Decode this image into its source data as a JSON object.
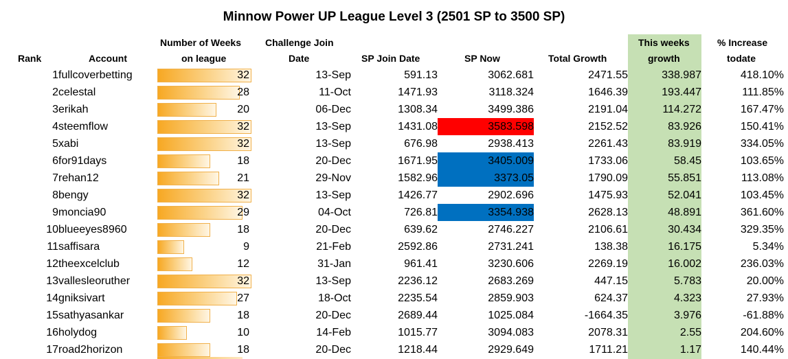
{
  "title": "Minnow Power UP League Level 3 (2501 SP to 3500 SP)",
  "headers": {
    "rank": "Rank",
    "account": "Account",
    "weeks_line1": "Number of Weeks",
    "weeks_line2": "on league",
    "join_line1": "Challenge Join",
    "join_line2": "Date",
    "sp_join": "SP Join Date",
    "sp_now": "SP Now",
    "total_growth": "Total Growth",
    "week_growth_line1": "This weeks",
    "week_growth_line2": "growth",
    "increase_line1": "% Increase",
    "increase_line2": "todate"
  },
  "colors": {
    "week_growth_column": "#c6e0b4",
    "highlight_red": "#ff0000",
    "highlight_blue": "#0070c0",
    "weeks_bar": "#f7a823"
  },
  "weeks_max": 32,
  "rows": [
    {
      "rank": "1",
      "account": "fullcoverbetting",
      "weeks": 32,
      "join_date": "13-Sep",
      "sp_join": "591.13",
      "sp_now": "3062.681",
      "total_growth": "2471.55",
      "week_growth": "338.987",
      "increase": "418.10%",
      "sp_now_highlight": ""
    },
    {
      "rank": "2",
      "account": "celestal",
      "weeks": 28,
      "join_date": "11-Oct",
      "sp_join": "1471.93",
      "sp_now": "3118.324",
      "total_growth": "1646.39",
      "week_growth": "193.447",
      "increase": "111.85%",
      "sp_now_highlight": ""
    },
    {
      "rank": "3",
      "account": "erikah",
      "weeks": 20,
      "join_date": "06-Dec",
      "sp_join": "1308.34",
      "sp_now": "3499.386",
      "total_growth": "2191.04",
      "week_growth": "114.272",
      "increase": "167.47%",
      "sp_now_highlight": ""
    },
    {
      "rank": "4",
      "account": "steemflow",
      "weeks": 32,
      "join_date": "13-Sep",
      "sp_join": "1431.08",
      "sp_now": "3583.598",
      "total_growth": "2152.52",
      "week_growth": "83.926",
      "increase": "150.41%",
      "sp_now_highlight": "red"
    },
    {
      "rank": "5",
      "account": "xabi",
      "weeks": 32,
      "join_date": "13-Sep",
      "sp_join": "676.98",
      "sp_now": "2938.413",
      "total_growth": "2261.43",
      "week_growth": "83.919",
      "increase": "334.05%",
      "sp_now_highlight": ""
    },
    {
      "rank": "6",
      "account": "for91days",
      "weeks": 18,
      "join_date": "20-Dec",
      "sp_join": "1671.95",
      "sp_now": "3405.009",
      "total_growth": "1733.06",
      "week_growth": "58.45",
      "increase": "103.65%",
      "sp_now_highlight": "blue"
    },
    {
      "rank": "7",
      "account": "rehan12",
      "weeks": 21,
      "join_date": "29-Nov",
      "sp_join": "1582.96",
      "sp_now": "3373.05",
      "total_growth": "1790.09",
      "week_growth": "55.851",
      "increase": "113.08%",
      "sp_now_highlight": "blue"
    },
    {
      "rank": "8",
      "account": "bengy",
      "weeks": 32,
      "join_date": "13-Sep",
      "sp_join": "1426.77",
      "sp_now": "2902.696",
      "total_growth": "1475.93",
      "week_growth": "52.041",
      "increase": "103.45%",
      "sp_now_highlight": ""
    },
    {
      "rank": "9",
      "account": "moncia90",
      "weeks": 29,
      "join_date": "04-Oct",
      "sp_join": "726.81",
      "sp_now": "3354.938",
      "total_growth": "2628.13",
      "week_growth": "48.891",
      "increase": "361.60%",
      "sp_now_highlight": "blue"
    },
    {
      "rank": "10",
      "account": "blueeyes8960",
      "weeks": 18,
      "join_date": "20-Dec",
      "sp_join": "639.62",
      "sp_now": "2746.227",
      "total_growth": "2106.61",
      "week_growth": "30.434",
      "increase": "329.35%",
      "sp_now_highlight": ""
    },
    {
      "rank": "11",
      "account": "saffisara",
      "weeks": 9,
      "join_date": "21-Feb",
      "sp_join": "2592.86",
      "sp_now": "2731.241",
      "total_growth": "138.38",
      "week_growth": "16.175",
      "increase": "5.34%",
      "sp_now_highlight": ""
    },
    {
      "rank": "12",
      "account": "theexcelclub",
      "weeks": 12,
      "join_date": "31-Jan",
      "sp_join": "961.41",
      "sp_now": "3230.606",
      "total_growth": "2269.19",
      "week_growth": "16.002",
      "increase": "236.03%",
      "sp_now_highlight": ""
    },
    {
      "rank": "13",
      "account": "vallesleoruther",
      "weeks": 32,
      "join_date": "13-Sep",
      "sp_join": "2236.12",
      "sp_now": "2683.269",
      "total_growth": "447.15",
      "week_growth": "5.783",
      "increase": "20.00%",
      "sp_now_highlight": ""
    },
    {
      "rank": "14",
      "account": "gniksivart",
      "weeks": 27,
      "join_date": "18-Oct",
      "sp_join": "2235.54",
      "sp_now": "2859.903",
      "total_growth": "624.37",
      "week_growth": "4.323",
      "increase": "27.93%",
      "sp_now_highlight": ""
    },
    {
      "rank": "15",
      "account": "sathyasankar",
      "weeks": 18,
      "join_date": "20-Dec",
      "sp_join": "2689.44",
      "sp_now": "1025.084",
      "total_growth": "-1664.35",
      "week_growth": "3.976",
      "increase": "-61.88%",
      "sp_now_highlight": ""
    },
    {
      "rank": "16",
      "account": "holydog",
      "weeks": 10,
      "join_date": "14-Feb",
      "sp_join": "1015.77",
      "sp_now": "3094.083",
      "total_growth": "2078.31",
      "week_growth": "2.55",
      "increase": "204.60%",
      "sp_now_highlight": ""
    },
    {
      "rank": "17",
      "account": "road2horizon",
      "weeks": 18,
      "join_date": "20-Dec",
      "sp_join": "1218.44",
      "sp_now": "2929.649",
      "total_growth": "1711.21",
      "week_growth": "1.17",
      "increase": "140.44%",
      "sp_now_highlight": ""
    }
  ]
}
